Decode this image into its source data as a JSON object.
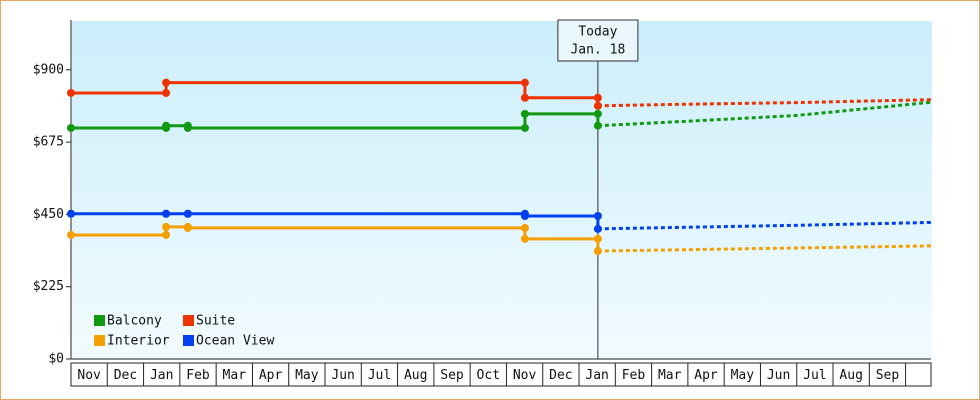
{
  "chart_data": {
    "type": "line",
    "categories": [
      "Nov",
      "Dec",
      "Jan",
      "Feb",
      "Mar",
      "Apr",
      "May",
      "Jun",
      "Jul",
      "Aug",
      "Sep",
      "Oct",
      "Nov",
      "Dec",
      "Jan",
      "Feb",
      "Mar",
      "Apr",
      "May",
      "Jun",
      "Jul",
      "Aug",
      "Sep"
    ],
    "xlim": [
      0,
      23.7
    ],
    "ylim": [
      0,
      1055
    ],
    "yticks": [
      {
        "value": 0,
        "label": "$0"
      },
      {
        "value": 225,
        "label": "$225"
      },
      {
        "value": 450,
        "label": "$450"
      },
      {
        "value": 675,
        "label": "$675"
      },
      {
        "value": 900,
        "label": "$900"
      }
    ],
    "annotation": {
      "lines": [
        "Today",
        "Jan. 18"
      ],
      "x": 14.52
    },
    "series": [
      {
        "name": "Balcony",
        "color": "#119911",
        "x": [
          0,
          2.62,
          2.62,
          3.22,
          3.22,
          12.51,
          12.51,
          14.52,
          14.52
        ],
        "values": [
          719,
          719,
          726,
          726,
          719,
          719,
          763,
          763,
          726
        ],
        "forecast_x": [
          14.52,
          17,
          20,
          22,
          23.7
        ],
        "forecast_values": [
          726,
          740,
          758,
          780,
          799
        ]
      },
      {
        "name": "Suite",
        "color": "#ee3300",
        "x": [
          0,
          2.62,
          2.62,
          12.51,
          12.51,
          14.52,
          14.52
        ],
        "values": [
          828,
          828,
          860,
          860,
          813,
          813,
          788
        ],
        "forecast_x": [
          14.52,
          17,
          20,
          23.7
        ],
        "forecast_values": [
          788,
          793,
          798,
          807
        ]
      },
      {
        "name": "Interior",
        "color": "#f5a000",
        "x": [
          0,
          2.62,
          2.62,
          3.22,
          3.22,
          12.51,
          12.51,
          14.52,
          14.52
        ],
        "values": [
          386,
          386,
          411,
          411,
          408,
          408,
          374,
          374,
          336
        ],
        "forecast_x": [
          14.52,
          18,
          23.7
        ],
        "forecast_values": [
          336,
          342,
          352
        ]
      },
      {
        "name": "Ocean View",
        "color": "#0040ee",
        "x": [
          0,
          2.62,
          2.62,
          3.22,
          3.22,
          12.51,
          12.51,
          14.52,
          14.52
        ],
        "values": [
          452,
          452,
          452,
          452,
          452,
          452,
          445,
          445,
          405
        ],
        "forecast_x": [
          14.52,
          17,
          20,
          23.7
        ],
        "forecast_values": [
          405,
          410,
          416,
          425
        ]
      }
    ]
  }
}
